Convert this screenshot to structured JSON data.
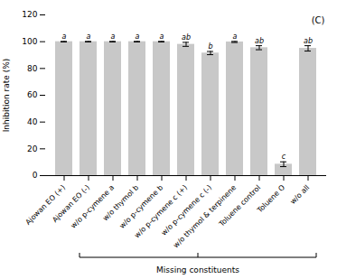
{
  "chart_data": {
    "type": "bar",
    "title": "(C)",
    "ylabel": "Inhibition rate (%)",
    "categories": [
      "Ajowan EO (+)",
      "Ajowan EO (-)",
      "w/o p-cymene a",
      "w/o thymol b",
      "w/o p-cymene b",
      "w/o p-cymene c (+)",
      "w/o p-cymene c (-)",
      "w/o thymol & terpinene",
      "Toluene control",
      "Toluene O",
      "w/o all"
    ],
    "values": [
      100.0,
      100.0,
      100.0,
      100.0,
      100.0,
      98.0,
      91.5,
      99.8,
      95.5,
      8.5,
      95.0
    ],
    "errors": [
      0.2,
      0.2,
      0.2,
      0.2,
      0.2,
      1.5,
      1.2,
      0.4,
      1.5,
      1.8,
      2.0
    ],
    "significance": [
      "a",
      "a",
      "a",
      "a",
      "a",
      "ab",
      "b",
      "a",
      "ab",
      "c",
      "ab"
    ],
    "annotations": [
      {
        "text": "Missing constituents",
        "start": "Ajowan EO (-)",
        "end": "w/o all"
      }
    ],
    "color": "#c8c8c8",
    "ylim": [
      0,
      120
    ],
    "yticks": [
      0,
      20,
      40,
      60,
      80,
      100,
      120
    ],
    "grid": false
  }
}
